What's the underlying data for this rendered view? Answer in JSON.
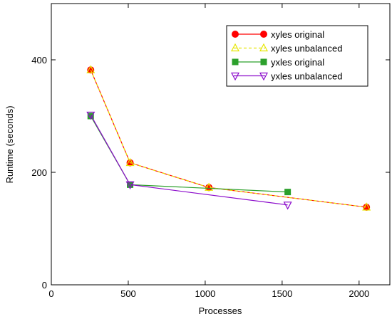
{
  "chart_data": {
    "type": "line",
    "xlabel": "Processes",
    "ylabel": "Runtime (seconds)",
    "xlim": [
      0,
      2200
    ],
    "ylim": [
      0,
      500
    ],
    "xticks": [
      0,
      500,
      1000,
      1500,
      2000
    ],
    "yticks": [
      0,
      200,
      400
    ],
    "grid": false,
    "legend_position": "top-right",
    "series": [
      {
        "name": "xyles original",
        "color": "#ff0000",
        "marker": "circle",
        "x": [
          256,
          512,
          1024,
          2048
        ],
        "y": [
          382,
          217,
          173,
          138
        ]
      },
      {
        "name": "xyles unbalanced",
        "color": "#e6e600",
        "marker": "triangle-up",
        "dashed": true,
        "x": [
          256,
          512,
          1024,
          2048
        ],
        "y": [
          382,
          217,
          173,
          138
        ]
      },
      {
        "name": "yxles original",
        "color": "#2ca02c",
        "marker": "square",
        "x": [
          256,
          512,
          1536
        ],
        "y": [
          300,
          178,
          165
        ]
      },
      {
        "name": "yxles unbalanced",
        "color": "#8b0acb",
        "marker": "triangle-down",
        "x": [
          256,
          512,
          1536
        ],
        "y": [
          302,
          178,
          142
        ]
      }
    ]
  }
}
